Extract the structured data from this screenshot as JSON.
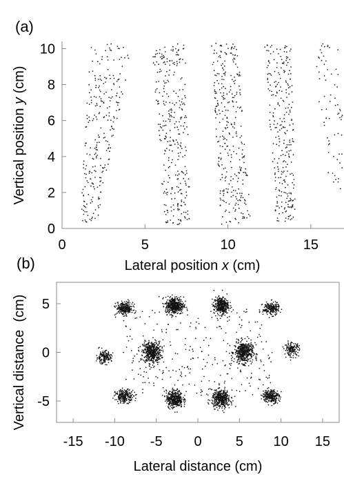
{
  "chart_data": [
    {
      "panel_label": "(a)",
      "type": "scatter",
      "xlabel": "Lateral position x (cm)",
      "ylabel": "Vertical position y (cm)",
      "xlim": [
        0,
        17
      ],
      "ylim": [
        0,
        10.4
      ],
      "xticks": [
        0,
        5,
        10,
        15
      ],
      "yticks": [
        0,
        2,
        4,
        6,
        8,
        10
      ],
      "grid": false,
      "clusters": [
        {
          "x_bottom": 1.6,
          "x_top": 3.0,
          "spread_bottom": 0.5,
          "spread_top": 1.3,
          "n": 260,
          "y_min": 0.3
        },
        {
          "x_bottom": 7.0,
          "x_top": 6.4,
          "spread_bottom": 0.8,
          "spread_top": 1.0,
          "n": 320,
          "y_min": 0.2
        },
        {
          "x_bottom": 10.5,
          "x_top": 9.8,
          "spread_bottom": 0.9,
          "spread_top": 0.8,
          "n": 320,
          "y_min": 0.2
        },
        {
          "x_bottom": 13.5,
          "x_top": 13.0,
          "spread_bottom": 0.6,
          "spread_top": 0.8,
          "n": 280,
          "y_min": 0.4
        },
        {
          "x_bottom": 16.5,
          "x_top": 16.0,
          "spread_bottom": 0.4,
          "spread_top": 0.9,
          "n": 70,
          "y_min": 2.0
        }
      ]
    },
    {
      "panel_label": "(b)",
      "type": "scatter",
      "xlabel": "Lateral distance (cm)",
      "ylabel": "Vertical distance  (cm)",
      "xlim": [
        -17,
        17
      ],
      "ylim": [
        -7.2,
        7.2
      ],
      "xticks": [
        -15,
        -10,
        -5,
        0,
        5,
        10,
        15
      ],
      "yticks": [
        -5,
        0,
        5
      ],
      "grid": false,
      "clusters": [
        {
          "x": -5.5,
          "y": 0.0,
          "sx": 1.0,
          "sy": 1.0,
          "n": 450
        },
        {
          "x": 5.5,
          "y": 0.0,
          "sx": 1.0,
          "sy": 1.0,
          "n": 450
        },
        {
          "x": -2.8,
          "y": 4.8,
          "sx": 1.0,
          "sy": 0.8,
          "n": 420
        },
        {
          "x": 2.8,
          "y": 4.8,
          "sx": 0.8,
          "sy": 0.8,
          "n": 350
        },
        {
          "x": -2.8,
          "y": -4.8,
          "sx": 0.9,
          "sy": 0.8,
          "n": 380
        },
        {
          "x": 2.8,
          "y": -4.8,
          "sx": 1.0,
          "sy": 0.8,
          "n": 400
        },
        {
          "x": -8.8,
          "y": 4.5,
          "sx": 0.9,
          "sy": 0.6,
          "n": 260
        },
        {
          "x": 8.8,
          "y": 4.5,
          "sx": 0.9,
          "sy": 0.6,
          "n": 200
        },
        {
          "x": -8.8,
          "y": -4.5,
          "sx": 1.0,
          "sy": 0.6,
          "n": 220
        },
        {
          "x": 8.8,
          "y": -4.5,
          "sx": 0.9,
          "sy": 0.6,
          "n": 240
        },
        {
          "x": -11.3,
          "y": -0.5,
          "sx": 0.8,
          "sy": 0.6,
          "n": 160
        },
        {
          "x": 11.3,
          "y": 0.3,
          "sx": 0.8,
          "sy": 0.6,
          "n": 150
        },
        {
          "x": 0.0,
          "y": 0.0,
          "sx": 9.0,
          "sy": 4.5,
          "n": 280
        }
      ]
    }
  ]
}
